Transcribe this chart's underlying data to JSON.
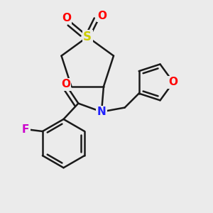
{
  "bg_color": "#ebebeb",
  "bond_color": "#1a1a1a",
  "N_color": "#2020ff",
  "O_color": "#ff0000",
  "S_color": "#cccc00",
  "F_color": "#cc00cc",
  "line_width": 1.8,
  "figsize": [
    3.0,
    3.0
  ],
  "dpi": 100,
  "xlim": [
    0,
    1
  ],
  "ylim": [
    0,
    1
  ]
}
